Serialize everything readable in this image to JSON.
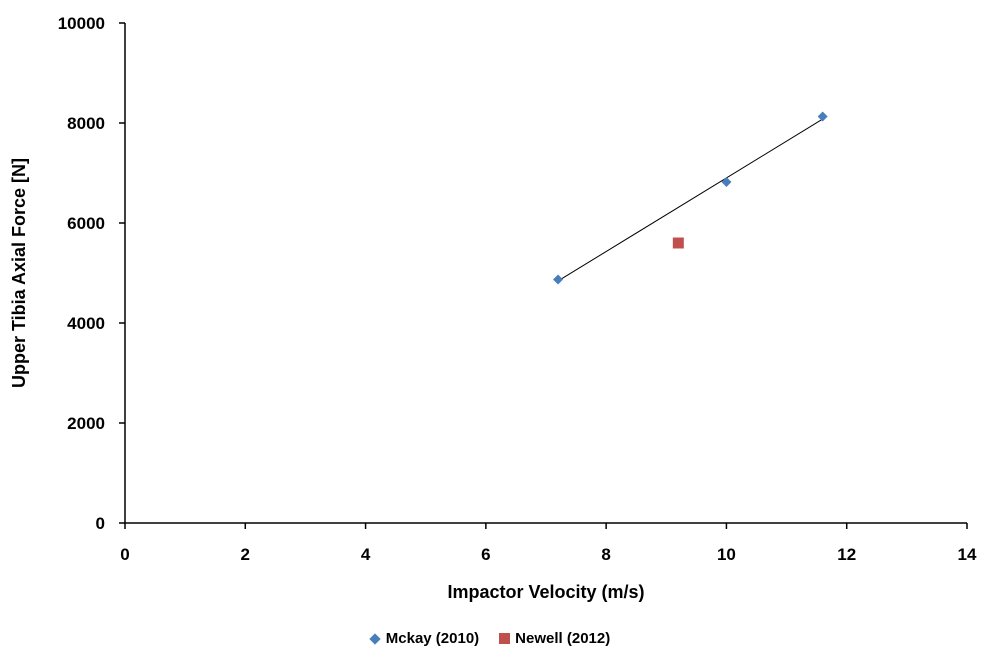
{
  "chart_data": {
    "type": "scatter",
    "title": "",
    "xlabel": "Impactor Velocity (m/s)",
    "ylabel": "Upper Tibia Axial Force [N]",
    "xlim": [
      0,
      14
    ],
    "ylim": [
      0,
      10000
    ],
    "xticks": [
      "0",
      "2",
      "4",
      "6",
      "8",
      "10",
      "12",
      "14"
    ],
    "yticks": [
      "0",
      "2000",
      "4000",
      "6000",
      "8000",
      "10000"
    ],
    "grid": false,
    "legend_position": "bottom",
    "series": [
      {
        "name": "Mckay (2010)",
        "marker": "diamond",
        "color": "#4a7ebb",
        "x": [
          7.2,
          10.0,
          11.6
        ],
        "y": [
          4870,
          6820,
          8130
        ],
        "trendline": true
      },
      {
        "name": "Newell (2012)",
        "marker": "square",
        "color": "#c0504d",
        "x": [
          9.2
        ],
        "y": [
          5600
        ],
        "trendline": false
      }
    ]
  }
}
